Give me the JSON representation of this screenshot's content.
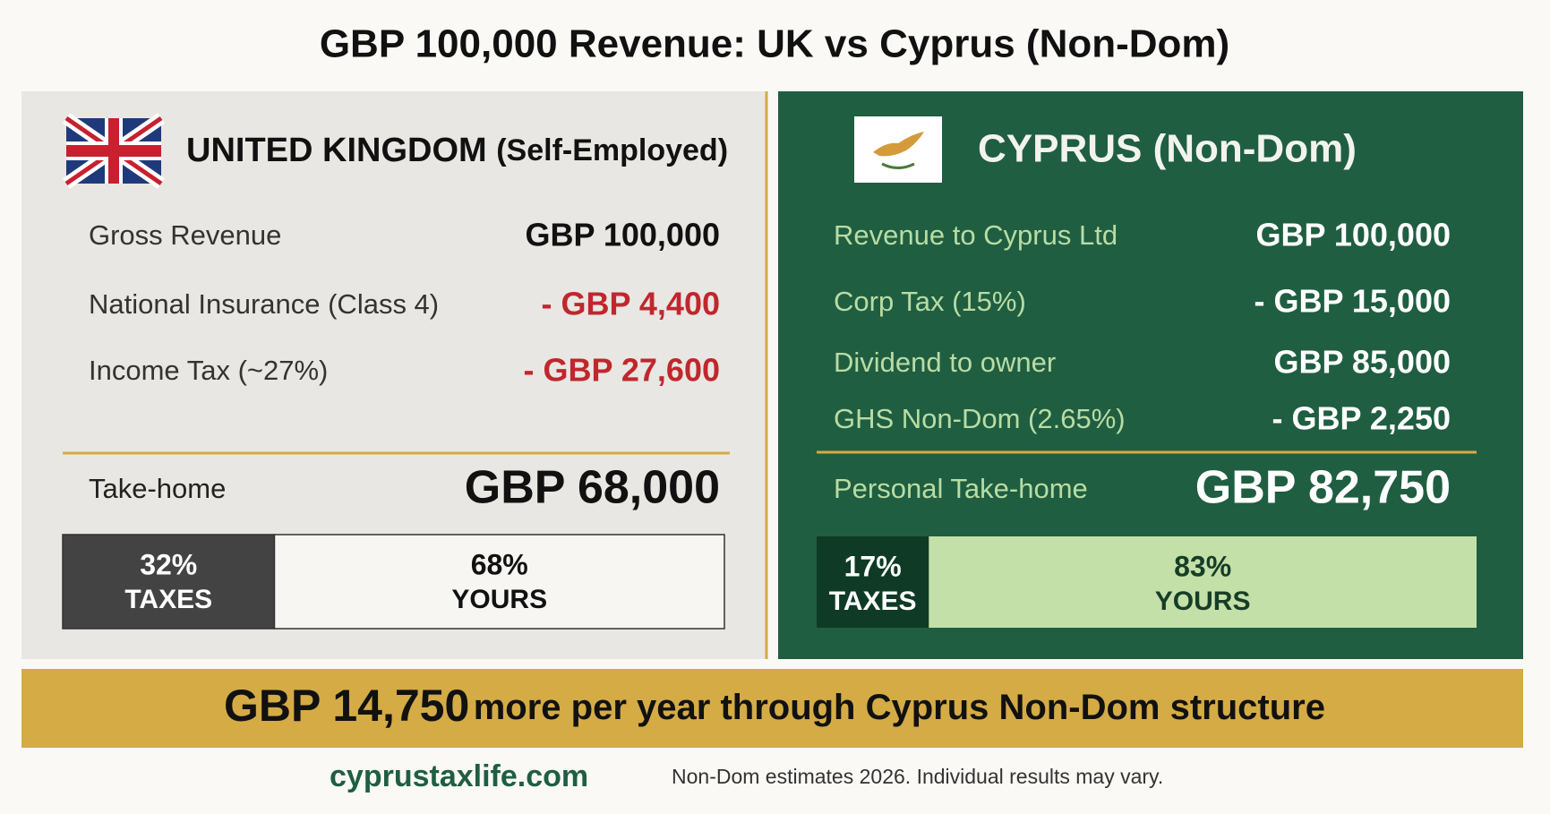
{
  "title": "GBP 100,000 Revenue: UK vs Cyprus (Non-Dom)",
  "uk": {
    "heading": "UNITED KINGDOM",
    "subheading": "(Self-Employed)",
    "rows": [
      {
        "label": "Gross Revenue",
        "value": "GBP 100,000"
      },
      {
        "label": "National Insurance (Class 4)",
        "value": "- GBP 4,400"
      },
      {
        "label": "Income Tax (~27%)",
        "value": "- GBP 27,600"
      }
    ],
    "takehome": {
      "label": "Take-home",
      "value": "GBP 68,000"
    },
    "split": [
      {
        "value": 32,
        "label": "32%",
        "caption": "TAXES"
      },
      {
        "value": 68,
        "label": "68%",
        "caption": "YOURS"
      }
    ]
  },
  "cyprus": {
    "heading": "CYPRUS (Non-Dom)",
    "rows": [
      {
        "label": "Revenue to Cyprus Ltd",
        "value": "GBP 100,000"
      },
      {
        "label": "Corp Tax (15%)",
        "value": "- GBP 15,000"
      },
      {
        "label": "Dividend to owner",
        "value": "GBP 85,000"
      },
      {
        "label": "GHS Non-Dom (2.65%)",
        "value": "- GBP 2,250"
      }
    ],
    "takehome": {
      "label": "Personal Take-home",
      "value": "GBP 82,750"
    },
    "split": [
      {
        "value": 17,
        "label": "17%",
        "caption": "TAXES"
      },
      {
        "value": 83,
        "label": "83%",
        "caption": "YOURS"
      }
    ]
  },
  "banner": {
    "amount": "GBP 14,750",
    "text": "more per year through Cyprus Non-Dom structure"
  },
  "footer": {
    "site": "cyprustaxlife.com",
    "note": "Non-Dom estimates 2026. Individual results may vary."
  }
}
